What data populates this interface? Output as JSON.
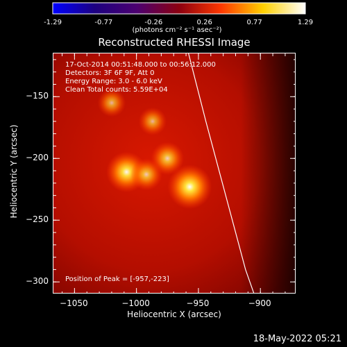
{
  "colorbar": {
    "min": -1.29,
    "max": 1.29,
    "tick_labels": [
      "-1.29",
      "-0.77",
      "-0.26",
      "0.26",
      "0.77",
      "1.29"
    ],
    "units_label": "(photons cm⁻² s⁻¹ asec⁻²)",
    "colors": [
      "#0000ff",
      "#1d0080",
      "#4c0070",
      "#8c0010",
      "#ff3800",
      "#ffd000",
      "#ffffff"
    ]
  },
  "chart_data": {
    "type": "heatmap",
    "title": "Reconstructed RHESSI Image",
    "xlabel": "Heliocentric X (arcsec)",
    "ylabel": "Heliocentric Y (arcsec)",
    "xlim": [
      -1067,
      -871
    ],
    "ylim": [
      -310,
      -115
    ],
    "xticks": [
      -1050,
      -1000,
      -950,
      -900
    ],
    "yticks": [
      -150,
      -200,
      -250,
      -300
    ],
    "info_lines": [
      "17-Oct-2014 00:51:48.000 to 00:56:12.000",
      "Detectors: 3F 6F 9F, Att 0",
      "Energy Range: 3.0 - 6.0 keV",
      "Clean    Total counts: 5.59E+04"
    ],
    "peak_label": "Position of Peak = [-957,-223]",
    "peak": [
      -957,
      -223
    ],
    "sources": [
      {
        "x": -957,
        "y": -223,
        "amplitude": 1.0
      },
      {
        "x": -1008,
        "y": -211,
        "amplitude": 0.85
      },
      {
        "x": -975,
        "y": -200,
        "amplitude": 0.55
      },
      {
        "x": -992,
        "y": -213,
        "amplitude": 0.5
      },
      {
        "x": -987,
        "y": -170,
        "amplitude": 0.35
      },
      {
        "x": -1020,
        "y": -155,
        "amplitude": 0.35
      }
    ],
    "limb_curve": [
      [
        -958,
        -115
      ],
      [
        -944,
        -170
      ],
      [
        -928,
        -230
      ],
      [
        -912,
        -290
      ],
      [
        -905,
        -310
      ]
    ]
  },
  "timestamp": "18-May-2022 05:21"
}
